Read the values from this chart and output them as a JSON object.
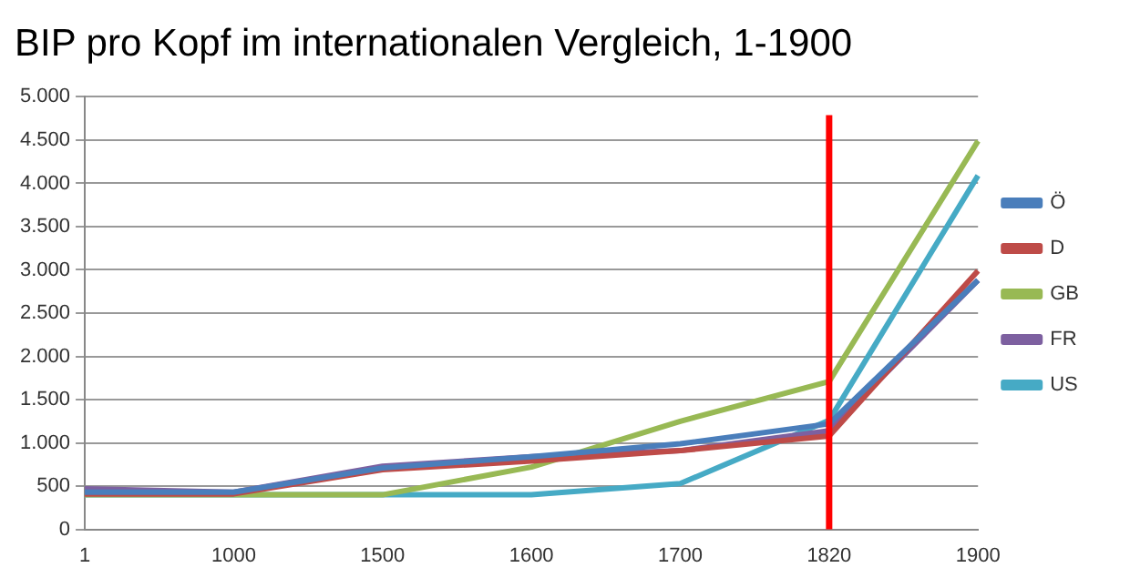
{
  "chart_data": {
    "type": "line",
    "title": "BIP pro Kopf im internationalen Vergleich, 1-1900",
    "categories": [
      "1",
      "1000",
      "1500",
      "1600",
      "1700",
      "1820",
      "1900"
    ],
    "series": [
      {
        "name": "Ö",
        "color": "#4a7ebb",
        "values": [
          430,
          430,
          710,
          840,
          990,
          1220,
          2880
        ]
      },
      {
        "name": "D",
        "color": "#be4b48",
        "values": [
          410,
          410,
          690,
          790,
          910,
          1080,
          2990
        ]
      },
      {
        "name": "GB",
        "color": "#98b954",
        "values": [
          400,
          400,
          400,
          720,
          1250,
          1710,
          4490
        ]
      },
      {
        "name": "FR",
        "color": "#7d60a0",
        "values": [
          470,
          430,
          730,
          840,
          910,
          1140,
          2880
        ]
      },
      {
        "name": "US",
        "color": "#46aac5",
        "values": [
          400,
          400,
          400,
          400,
          530,
          1260,
          4090
        ]
      }
    ],
    "ylim": [
      0,
      5000
    ],
    "yticks": [
      0,
      {
        "value": 500,
        "label": "500"
      },
      {
        "value": 1000,
        "label": "1.000"
      },
      {
        "value": 1500,
        "label": "1.500"
      },
      {
        "value": 2000,
        "label": "2.000"
      },
      {
        "value": 2500,
        "label": "2.500"
      },
      {
        "value": 3000,
        "label": "3.000"
      },
      {
        "value": 3500,
        "label": "3.500"
      },
      {
        "value": 4000,
        "label": "4.000"
      },
      {
        "value": 4500,
        "label": "4.500"
      },
      {
        "value": 5000,
        "label": "5.000"
      }
    ],
    "ref_lines": [
      {
        "axis": "x",
        "value": "1820",
        "color": "#ff0000"
      }
    ],
    "grid": "y",
    "legend": "right",
    "marker": "none",
    "line_style": "solid"
  }
}
